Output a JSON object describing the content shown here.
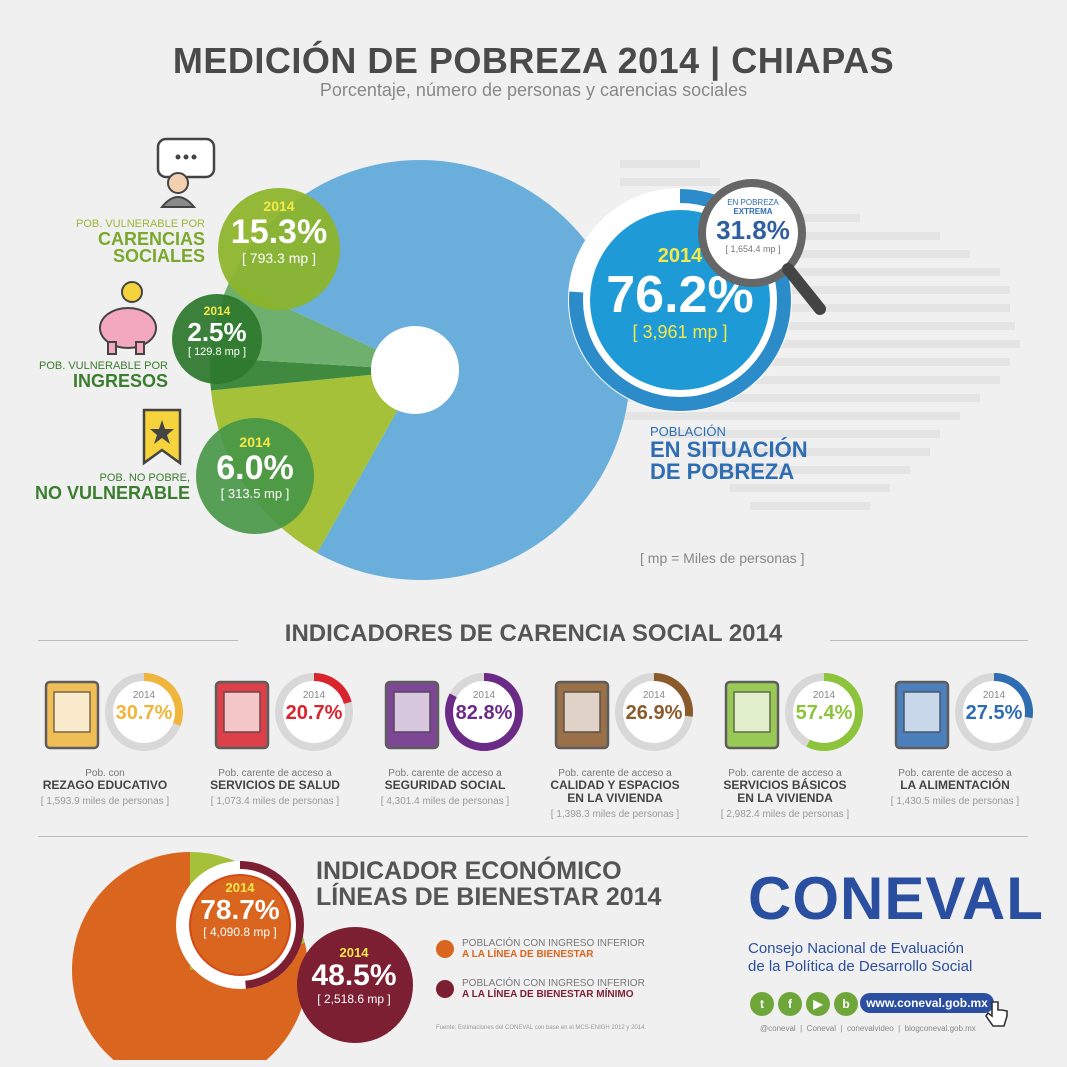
{
  "header": {
    "title": "MEDICIÓN DE POBREZA 2014 | CHIAPAS",
    "subtitle": "Porcentaje, número de personas y carencias sociales"
  },
  "colors": {
    "pobreza": "#6aaedb",
    "pobreza_dark": "#2c8cc9",
    "extrema": "#2f5fa0",
    "carencias": "#a5c13a",
    "ingresos": "#3f8a3f",
    "no_vulnerable": "#6fb06f",
    "inferior_bienestar": "#d9651e",
    "inferior_minimo": "#7d1f33",
    "green_text": "#7aa82c",
    "dark_green_text": "#3a7d2e",
    "blue_text": "#2f6db3"
  },
  "chart_data": [
    {
      "type": "pie",
      "categories": [
        "Población en situación de pobreza",
        "Pob. vulnerable por carencias sociales",
        "Pob. vulnerable por ingresos",
        "Pob. no pobre, no vulnerable"
      ],
      "values": [
        76.2,
        15.3,
        2.5,
        6.0
      ],
      "people_mp": [
        "3,961 mp",
        "793.3 mp",
        "129.8 mp",
        "313.5 mp"
      ],
      "year": "2014",
      "extreme_poverty": {
        "label_top": "EN POBREZA",
        "label_bottom": "EXTREMA",
        "value": "31.8%",
        "mp": "1,654.4 mp"
      }
    },
    {
      "type": "bar",
      "title": "INDICADORES DE CARENCIA SOCIAL 2014",
      "categories": [
        "REZAGO EDUCATIVO",
        "SERVICIOS DE SALUD",
        "SEGURIDAD SOCIAL",
        "CALIDAD Y ESPACIOS EN LA VIVIENDA",
        "SERVICIOS BÁSICOS EN LA VIVIENDA",
        "LA ALIMENTACIÓN"
      ],
      "values": [
        30.7,
        20.7,
        82.8,
        26.9,
        57.4,
        27.5
      ]
    },
    {
      "type": "pie",
      "title": "INDICADOR ECONÓMICO LÍNEAS DE BIENESTAR 2014",
      "categories": [
        "Población con ingreso inferior a la línea de bienestar",
        "Población con ingreso inferior a la línea de bienestar mínimo"
      ],
      "values": [
        78.7,
        48.5
      ],
      "people_mp": [
        "4,090.8 mp",
        "2,518.6 mp"
      ]
    }
  ],
  "main_chart": {
    "pobreza": {
      "year": "2014",
      "pct": "76.2%",
      "mp": "[ 3,961 mp ]",
      "label_small": "POBLACIÓN",
      "label_big1": "EN SITUACIÓN",
      "label_big2": "DE POBREZA"
    },
    "carencias": {
      "year": "2014",
      "pct": "15.3%",
      "mp": "[ 793.3 mp ]",
      "label_small": "POB. VULNERABLE POR",
      "label_big1": "CARENCIAS",
      "label_big2": "SOCIALES"
    },
    "ingresos": {
      "year": "2014",
      "pct": "2.5%",
      "mp": "[ 129.8 mp ]",
      "label_small1": "POB. VULNERABLE POR",
      "label_big": "INGRESOS"
    },
    "no_vulnerable": {
      "year": "2014",
      "pct": "6.0%",
      "mp": "[ 313.5 mp ]",
      "label_small": "POB. NO POBRE,",
      "label_big": "NO VULNERABLE"
    },
    "extrema": {
      "label_top": "EN POBREZA",
      "label_bottom": "EXTREMA",
      "pct": "31.8%",
      "mp": "[ 1,654.4 mp ]"
    },
    "mp_note": "[ mp = Miles de personas ]"
  },
  "indicators": {
    "title": "INDICADORES DE CARENCIA SOCIAL 2014",
    "items": [
      {
        "year": "2014",
        "pct": "30.7%",
        "value": 30.7,
        "color": "#f0b53c",
        "small": "Pob. con",
        "big1": "REZAGO EDUCATIVO",
        "big2": "",
        "people": "[ 1,593.9 miles de personas ]",
        "icon": "book-icon"
      },
      {
        "year": "2014",
        "pct": "20.7%",
        "value": 20.7,
        "color": "#d9232d",
        "small": "Pob. carente de acceso a",
        "big1": "SERVICIOS DE SALUD",
        "big2": "",
        "people": "[ 1,073.4 miles de personas ]",
        "icon": "ambulance-icon"
      },
      {
        "year": "2014",
        "pct": "82.8%",
        "value": 82.8,
        "color": "#6b2a86",
        "small": "Pob. carente de acceso a",
        "big1": "SEGURIDAD SOCIAL",
        "big2": "",
        "people": "[ 4,301.4 miles de personas ]",
        "icon": "hand-person-icon"
      },
      {
        "year": "2014",
        "pct": "26.9%",
        "value": 26.9,
        "color": "#8a5a2b",
        "small": "Pob. carente de acceso a",
        "big1": "CALIDAD Y ESPACIOS",
        "big2": "EN LA VIVIENDA",
        "people": "[ 1,398.3 miles de personas ]",
        "icon": "house-icon"
      },
      {
        "year": "2014",
        "pct": "57.4%",
        "value": 57.4,
        "color": "#8cc43c",
        "small": "Pob. carente de acceso a",
        "big1": "SERVICIOS BÁSICOS",
        "big2": "EN LA VIVIENDA",
        "people": "[ 2,982.4 miles de personas ]",
        "icon": "water-bulb-icon"
      },
      {
        "year": "2014",
        "pct": "27.5%",
        "value": 27.5,
        "color": "#2f6db3",
        "small": "Pob. carente de acceso a",
        "big1": "LA ALIMENTACIÓN",
        "big2": "",
        "people": "[ 1,430.5 miles de personas ]",
        "icon": "food-icon"
      }
    ]
  },
  "economic": {
    "title1": "INDICADOR ECONÓMICO",
    "title2": "LÍNEAS DE BIENESTAR 2014",
    "bienestar": {
      "year": "2014",
      "pct": "78.7%",
      "value": 78.7,
      "mp": "[ 4,090.8 mp ]"
    },
    "minimo": {
      "year": "2014",
      "pct": "48.5%",
      "value": 48.5,
      "mp": "[ 2,518.6 mp ]"
    },
    "legend": [
      {
        "small": "POBLACIÓN CON INGRESO INFERIOR",
        "big": "A LA LÍNEA DE BIENESTAR",
        "color": "#d9651e"
      },
      {
        "small": "POBLACIÓN CON INGRESO INFERIOR",
        "big": "A LA LÍNEA DE BIENESTAR MÍNIMO",
        "color": "#7d1f33"
      }
    ],
    "source": "Fuente: Estimaciones del CONEVAL con base en el MCS-ENIGH 2012 y 2014."
  },
  "brand": {
    "logo": "CONEVAL",
    "line1": "Consejo Nacional de Evaluación",
    "line2": "de la Política de Desarrollo Social",
    "url": "www.coneval.gob.mx",
    "handles": "@coneval  |  Coneval  |  conevalvideo  |  blogconeval.gob.mx",
    "social_icons": [
      "twitter-icon",
      "facebook-icon",
      "youtube-icon",
      "blog-icon"
    ]
  }
}
